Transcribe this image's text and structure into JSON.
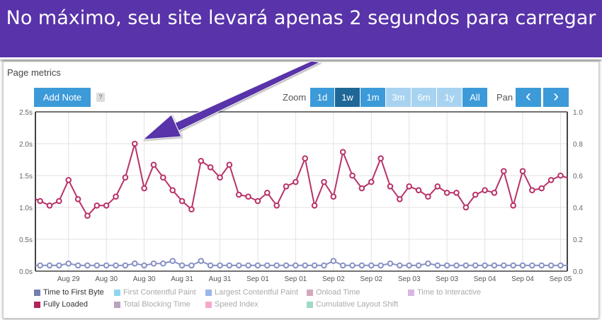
{
  "banner": {
    "text": "No máximo, seu site levará apenas 2 segundos para carregar",
    "color": "#5833a9"
  },
  "panel": {
    "title": "Page metrics"
  },
  "toolbar": {
    "add_note": "Add Note",
    "help": "?",
    "zoom_label": "Zoom",
    "zoom_options": [
      {
        "label": "1d",
        "state": "enabled"
      },
      {
        "label": "1w",
        "state": "selected"
      },
      {
        "label": "1m",
        "state": "enabled"
      },
      {
        "label": "3m",
        "state": "disabled"
      },
      {
        "label": "6m",
        "state": "disabled"
      },
      {
        "label": "1y",
        "state": "disabled"
      },
      {
        "label": "All",
        "state": "enabled"
      }
    ],
    "pan_label": "Pan",
    "pan_prev": "‹",
    "pan_next": "›"
  },
  "chart_data": {
    "type": "line",
    "grid": true,
    "legend_placement": "bottom",
    "y_left": {
      "ticks": [
        "0.0s",
        "0.5s",
        "1.0s",
        "1.5s",
        "2.0s",
        "2.5s"
      ],
      "range": [
        0,
        2.5
      ],
      "unit": "s"
    },
    "y_right": {
      "ticks": [
        "0.0",
        "0.2",
        "0.4",
        "0.6",
        "0.8",
        "1.0"
      ],
      "range": [
        0,
        1.0
      ]
    },
    "x_ticks": [
      "Aug 29",
      "Aug 30",
      "Aug 30",
      "Aug 31",
      "Aug 31",
      "Sep 01",
      "Sep 01",
      "Sep 02",
      "Sep 02",
      "Sep 03",
      "Sep 03",
      "Sep 04",
      "Sep 04",
      "Sep 05"
    ],
    "series": [
      {
        "name": "Fully Loaded",
        "color": "#b8326a",
        "visible": true,
        "values": [
          1.17,
          1.1,
          1.03,
          1.1,
          1.43,
          1.13,
          0.87,
          1.03,
          1.03,
          1.17,
          1.47,
          2.0,
          1.3,
          1.67,
          1.47,
          1.27,
          1.1,
          0.97,
          1.73,
          1.63,
          1.47,
          1.67,
          1.2,
          1.17,
          1.1,
          1.23,
          1.03,
          1.33,
          1.4,
          1.77,
          1.03,
          1.4,
          1.17,
          1.87,
          1.5,
          1.3,
          1.4,
          1.77,
          1.33,
          1.13,
          1.33,
          1.27,
          1.17,
          1.33,
          1.23,
          1.23,
          1.0,
          1.2,
          1.27,
          1.23,
          1.57,
          1.03,
          1.57,
          1.27,
          1.3,
          1.43,
          1.5,
          1.45
        ]
      },
      {
        "name": "Time to First Byte",
        "color": "#8891c4",
        "visible": true,
        "values": [
          0.09,
          0.09,
          0.09,
          0.09,
          0.12,
          0.09,
          0.09,
          0.09,
          0.09,
          0.09,
          0.09,
          0.12,
          0.09,
          0.12,
          0.12,
          0.16,
          0.09,
          0.09,
          0.16,
          0.09,
          0.09,
          0.09,
          0.09,
          0.09,
          0.09,
          0.09,
          0.09,
          0.09,
          0.09,
          0.09,
          0.09,
          0.09,
          0.16,
          0.09,
          0.09,
          0.09,
          0.09,
          0.09,
          0.12,
          0.09,
          0.09,
          0.09,
          0.12,
          0.09,
          0.09,
          0.09,
          0.09,
          0.09,
          0.09,
          0.09,
          0.09,
          0.09,
          0.09,
          0.09,
          0.09,
          0.09,
          0.09,
          0.09
        ]
      }
    ],
    "legend": [
      {
        "name": "Time to First Byte",
        "color": "#6f7fb0",
        "visible": true
      },
      {
        "name": "First Contentful Paint",
        "color": "#8fd6f2",
        "visible": false
      },
      {
        "name": "Largest Contentful Paint",
        "color": "#9bb6ea",
        "visible": false
      },
      {
        "name": "Onload Time",
        "color": "#d3a7bd",
        "visible": false
      },
      {
        "name": "Time to Interactive",
        "color": "#d9b5e6",
        "visible": false
      },
      {
        "name": "Fully Loaded",
        "color": "#b0245d",
        "visible": true
      },
      {
        "name": "Total Blocking Time",
        "color": "#b9a3bf",
        "visible": false
      },
      {
        "name": "Speed Index",
        "color": "#f4a9cc",
        "visible": false
      },
      {
        "name": "Cumulative Layout Shift",
        "color": "#9fd9c1",
        "visible": false
      }
    ]
  }
}
